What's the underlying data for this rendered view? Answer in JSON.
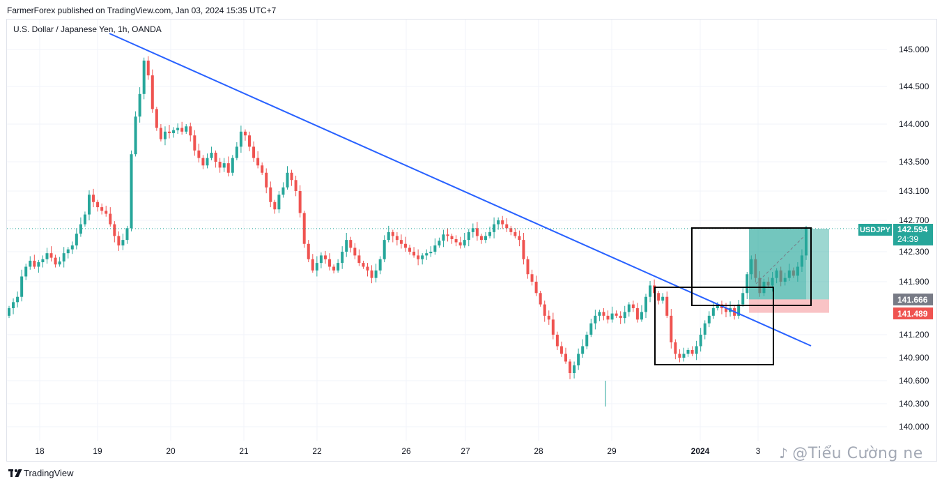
{
  "header": {
    "publisher_line": "FarmerForex published on TradingView.com, Jan 03, 2024 15:35 UTC+7"
  },
  "symbol_line": "U.S. Dollar / Japanese Yen, 1h, OANDA",
  "footer": {
    "brand": "TradingView"
  },
  "watermark": {
    "text": "@Tiểu Cường ne"
  },
  "colors": {
    "up": "#26a69a",
    "down": "#ef5350",
    "trendline": "#2962ff",
    "profit": "#26a69a",
    "loss": "#f7a9ad"
  },
  "chart_data": {
    "type": "candlestick",
    "title": "U.S. Dollar / Japanese Yen, 1h, OANDA",
    "ylim": [
      139.8,
      145.25
    ],
    "y_ticks": [
      "145.000",
      "144.500",
      "144.000",
      "143.500",
      "143.100",
      "142.700",
      "142.300",
      "141.900",
      "141.200",
      "140.900",
      "140.600",
      "140.300",
      "140.000"
    ],
    "x_labels": [
      "18",
      "19",
      "20",
      "21",
      "22",
      "26",
      "27",
      "28",
      "29",
      "2024",
      "3"
    ],
    "grid": true,
    "price_labels": {
      "last": {
        "symbol": "USDJPY",
        "value": "142.594",
        "countdown": "24:39"
      },
      "entry": "141.666",
      "stop": "141.489"
    },
    "closes": [
      141.55,
      141.63,
      141.7,
      141.97,
      142.1,
      142.18,
      142.1,
      142.16,
      142.2,
      142.28,
      142.22,
      142.13,
      142.17,
      142.28,
      142.33,
      142.38,
      142.53,
      142.65,
      142.78,
      143.05,
      142.95,
      142.88,
      142.83,
      142.79,
      142.65,
      142.5,
      142.38,
      142.45,
      142.6,
      143.6,
      144.1,
      144.4,
      144.85,
      144.65,
      144.2,
      143.95,
      143.8,
      143.9,
      143.88,
      143.92,
      143.95,
      143.9,
      143.97,
      143.85,
      143.65,
      143.55,
      143.45,
      143.55,
      143.62,
      143.5,
      143.42,
      143.48,
      143.35,
      143.55,
      143.7,
      143.9,
      143.85,
      143.7,
      143.55,
      143.45,
      143.35,
      143.15,
      142.95,
      142.85,
      143.05,
      143.15,
      143.35,
      143.25,
      143.1,
      142.8,
      142.4,
      142.2,
      142.05,
      142.15,
      142.25,
      142.2,
      142.1,
      142.05,
      142.15,
      142.3,
      142.45,
      142.35,
      142.25,
      142.15,
      142.1,
      142.05,
      141.95,
      142.05,
      142.2,
      142.45,
      142.55,
      142.5,
      142.45,
      142.4,
      142.35,
      142.3,
      142.25,
      142.2,
      142.25,
      142.28,
      142.3,
      142.38,
      142.44,
      142.52,
      142.5,
      142.46,
      142.42,
      142.38,
      142.45,
      142.55,
      142.6,
      142.5,
      142.45,
      142.5,
      142.55,
      142.65,
      142.7,
      142.65,
      142.6,
      142.55,
      142.5,
      142.45,
      142.2,
      142.0,
      141.9,
      141.75,
      141.6,
      141.45,
      141.4,
      141.2,
      141.05,
      140.95,
      140.85,
      140.7,
      140.8,
      140.95,
      141.05,
      141.2,
      141.35,
      141.45,
      141.5,
      141.45,
      141.4,
      141.48,
      141.45,
      141.42,
      141.5,
      141.6,
      141.55,
      141.4,
      141.5,
      141.7,
      141.85,
      141.75,
      141.65,
      141.7,
      141.45,
      141.1,
      140.95,
      140.9,
      140.95,
      141.0,
      140.95,
      141.05,
      141.2,
      141.35,
      141.45,
      141.55,
      141.6,
      141.55,
      141.5,
      141.55,
      141.45,
      141.6,
      141.75,
      142.0,
      142.2,
      141.95,
      141.75,
      141.9,
      141.85,
      141.95,
      142.05,
      141.9,
      141.95,
      142.05,
      141.98,
      142.1,
      142.25,
      142.6
    ]
  }
}
